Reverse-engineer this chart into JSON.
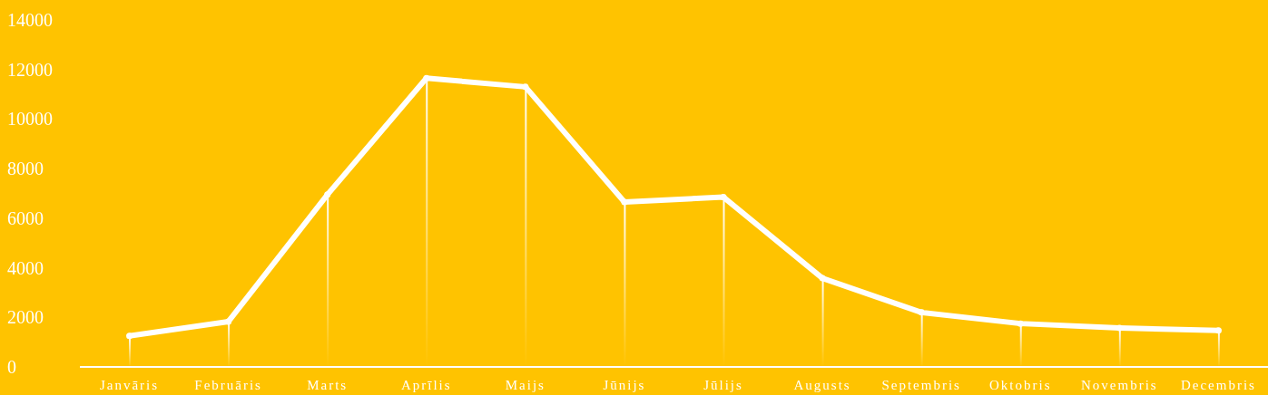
{
  "chart_data": {
    "type": "line",
    "categories": [
      "Janvāris",
      "Februāris",
      "Marts",
      "Aprīlis",
      "Maijs",
      "Jūnijs",
      "Jūlijs",
      "Augusts",
      "Septembris",
      "Oktobris",
      "Novembris",
      "Decembris"
    ],
    "series": [
      {
        "type": "bar",
        "color": "#ffffff",
        "values": [
          1250,
          1830,
          6950,
          11650,
          11300,
          6650,
          6850,
          3580,
          2200,
          1750,
          1570,
          1470
        ]
      },
      {
        "color": "#ffffff",
        "values": [
          1250,
          1830,
          6950,
          11650,
          11300,
          6650,
          6850,
          3580,
          2200,
          1750,
          1570,
          1470
        ]
      }
    ],
    "ylim": [
      0,
      14000
    ],
    "yticks": [
      0,
      2000,
      4000,
      6000,
      8000,
      10000,
      12000,
      14000
    ],
    "grid": false,
    "legend": false,
    "marker": "circle",
    "line_style": "solid"
  }
}
